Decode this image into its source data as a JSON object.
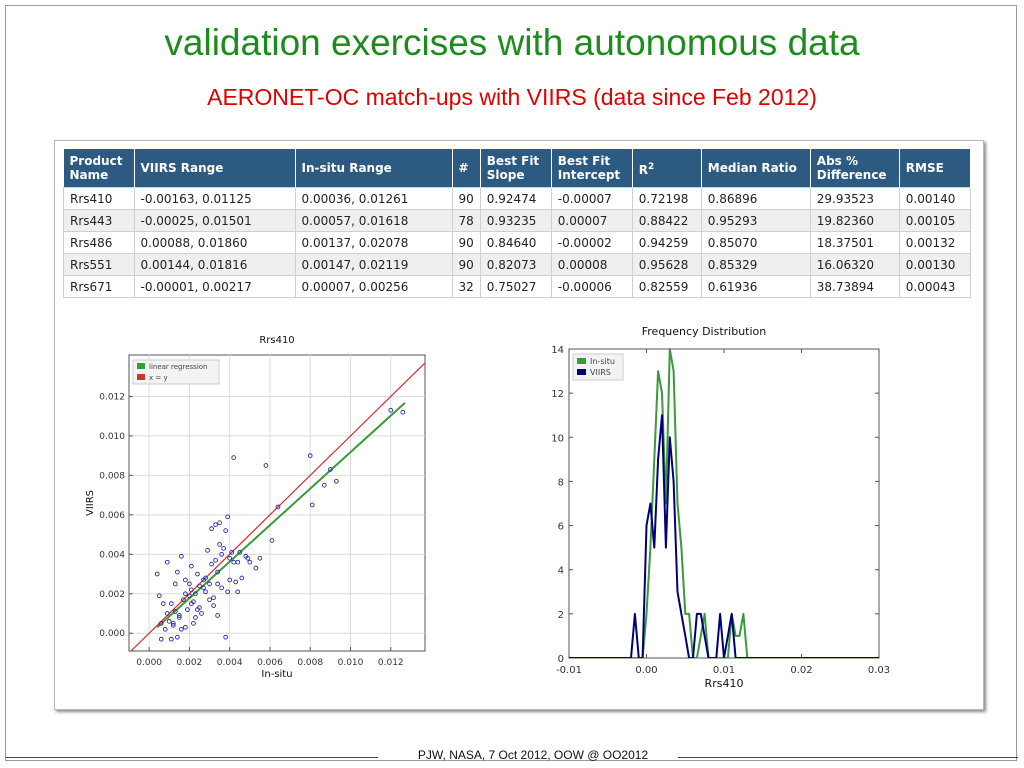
{
  "slide": {
    "title": "validation exercises with autonomous data",
    "subtitle": "AERONET-OC match-ups with VIIRS (data since Feb 2012)",
    "footer": "PJW, NASA, 7 Oct 2012, OOW @ OO2012"
  },
  "table": {
    "headers": [
      "Product Name",
      "VIIRS Range",
      "In-situ Range",
      "#",
      "Best Fit Slope",
      "Best Fit Intercept",
      "R",
      "Median Ratio",
      "Abs % Difference",
      "RMSE"
    ],
    "r_superscript": "2",
    "rows": [
      [
        "Rrs410",
        "-0.00163, 0.01125",
        "0.00036, 0.01261",
        "90",
        "0.92474",
        "-0.00007",
        "0.72198",
        "0.86896",
        "29.93523",
        "0.00140"
      ],
      [
        "Rrs443",
        "-0.00025, 0.01501",
        "0.00057, 0.01618",
        "78",
        "0.93235",
        "0.00007",
        "0.88422",
        "0.95293",
        "19.82360",
        "0.00105"
      ],
      [
        "Rrs486",
        "0.00088, 0.01860",
        "0.00137, 0.02078",
        "90",
        "0.84640",
        "-0.00002",
        "0.94259",
        "0.85070",
        "18.37501",
        "0.00132"
      ],
      [
        "Rrs551",
        "0.00144, 0.01816",
        "0.00147, 0.02119",
        "90",
        "0.82073",
        "0.00008",
        "0.95628",
        "0.85329",
        "16.06320",
        "0.00130"
      ],
      [
        "Rrs671",
        "-0.00001, 0.00217",
        "0.00007, 0.00256",
        "32",
        "0.75027",
        "-0.00006",
        "0.82559",
        "0.61936",
        "38.73894",
        "0.00043"
      ]
    ]
  },
  "colors": {
    "title": "#1e8b1e",
    "subtitle": "#e00000",
    "header": "#2d5a80",
    "regression": "#3a9a3a",
    "one_to_one": "#d03030",
    "points": "#2b2b9a",
    "insitu": "#3a9a3a",
    "viirs": "#00007a"
  },
  "chart_data": [
    {
      "type": "scatter",
      "title": "Rrs410",
      "xlabel": "In-situ",
      "ylabel": "VIIRS",
      "xlim": [
        -0.001,
        0.0137
      ],
      "ylim": [
        -0.0009,
        0.0141
      ],
      "xticks": [
        "0.000",
        "0.002",
        "0.004",
        "0.006",
        "0.008",
        "0.010",
        "0.012"
      ],
      "yticks": [
        "0.000",
        "0.002",
        "0.004",
        "0.006",
        "0.008",
        "0.010",
        "0.012"
      ],
      "grid": true,
      "legend_position": "top-left",
      "legend": [
        "linear regression",
        "x = y"
      ],
      "regression": {
        "slope": 0.92474,
        "intercept": -7e-05
      },
      "points": [
        [
          0.012,
          0.0113
        ],
        [
          0.0126,
          0.0112
        ],
        [
          0.0093,
          0.0077
        ],
        [
          0.0087,
          0.0075
        ],
        [
          0.009,
          0.0083
        ],
        [
          0.0081,
          0.0065
        ],
        [
          0.008,
          0.009
        ],
        [
          0.0064,
          0.0064
        ],
        [
          0.0058,
          0.0085
        ],
        [
          0.0042,
          0.0089
        ],
        [
          0.0061,
          0.0047
        ],
        [
          0.0055,
          0.0038
        ],
        [
          0.0053,
          0.0033
        ],
        [
          0.005,
          0.0036
        ],
        [
          0.0048,
          0.0039
        ],
        [
          0.0045,
          0.0041
        ],
        [
          0.0044,
          0.0036
        ],
        [
          0.0042,
          0.0036
        ],
        [
          0.0041,
          0.0041
        ],
        [
          0.004,
          0.0038
        ],
        [
          0.004,
          0.0027
        ],
        [
          0.0039,
          0.0021
        ],
        [
          0.0039,
          0.0059
        ],
        [
          0.0038,
          0.0052
        ],
        [
          0.0037,
          0.0043
        ],
        [
          0.0036,
          0.004
        ],
        [
          0.0036,
          0.0023
        ],
        [
          0.0035,
          0.0056
        ],
        [
          0.0035,
          0.0045
        ],
        [
          0.0034,
          0.0031
        ],
        [
          0.0034,
          0.0025
        ],
        [
          0.0033,
          0.0055
        ],
        [
          0.0033,
          0.0037
        ],
        [
          0.0032,
          0.0014
        ],
        [
          0.0031,
          0.0053
        ],
        [
          0.0031,
          0.0035
        ],
        [
          0.003,
          0.0025
        ],
        [
          0.003,
          0.0017
        ],
        [
          0.0029,
          0.0042
        ],
        [
          0.0028,
          0.0028
        ],
        [
          0.0027,
          0.0027
        ],
        [
          0.0026,
          0.001
        ],
        [
          0.0025,
          0.0024
        ],
        [
          0.0024,
          0.003
        ],
        [
          0.0023,
          0.002
        ],
        [
          0.0023,
          0.0008
        ],
        [
          0.0022,
          0.0016
        ],
        [
          0.0021,
          0.0034
        ],
        [
          0.0021,
          0.0022
        ],
        [
          0.002,
          0.0019
        ],
        [
          0.0019,
          0.0012
        ],
        [
          0.0018,
          0.0027
        ],
        [
          0.0018,
          0.0003
        ],
        [
          0.0017,
          0.0017
        ],
        [
          0.0016,
          0.0002
        ],
        [
          0.0016,
          0.0039
        ],
        [
          0.0015,
          0.0008
        ],
        [
          0.0014,
          0.0031
        ],
        [
          0.0014,
          -0.0002
        ],
        [
          0.0013,
          0.0011
        ],
        [
          0.0013,
          0.0025
        ],
        [
          0.0012,
          0.0004
        ],
        [
          0.0011,
          0.0015
        ],
        [
          0.0011,
          -0.0003
        ],
        [
          0.001,
          0.0006
        ],
        [
          0.0009,
          0.0036
        ],
        [
          0.0009,
          0.001
        ],
        [
          0.0008,
          0.0002
        ],
        [
          0.0007,
          0.0015
        ],
        [
          0.0006,
          -0.0003
        ],
        [
          0.0006,
          0.0005
        ],
        [
          0.0005,
          0.0019
        ],
        [
          0.0004,
          0.003
        ],
        [
          0.0027,
          0.0023
        ],
        [
          0.0025,
          0.0013
        ],
        [
          0.0022,
          0.0005
        ],
        [
          0.0034,
          0.0009
        ],
        [
          0.0044,
          0.0021
        ],
        [
          0.0038,
          -0.0002
        ],
        [
          0.0049,
          0.0038
        ],
        [
          0.0046,
          0.0028
        ],
        [
          0.0043,
          0.0026
        ],
        [
          0.0018,
          0.002
        ],
        [
          0.0012,
          0.0005
        ],
        [
          0.0015,
          0.0009
        ],
        [
          0.0021,
          0.0015
        ],
        [
          0.0028,
          0.0021
        ],
        [
          0.0032,
          0.0018
        ],
        [
          0.0024,
          0.0012
        ],
        [
          0.002,
          0.0025
        ]
      ]
    },
    {
      "type": "line",
      "title": "Frequency Distribution",
      "xlabel": "Rrs410",
      "ylabel": "",
      "xlim": [
        -0.01,
        0.03
      ],
      "ylim": [
        0,
        14
      ],
      "xticks": [
        "-0.01",
        "0.00",
        "0.01",
        "0.02",
        "0.03"
      ],
      "yticks": [
        "0",
        "2",
        "4",
        "6",
        "8",
        "10",
        "12",
        "14"
      ],
      "legend_position": "top-left",
      "x": [
        -0.01,
        -0.002,
        -0.0015,
        -0.001,
        -0.0005,
        0.0,
        0.0005,
        0.001,
        0.0015,
        0.002,
        0.0025,
        0.003,
        0.0035,
        0.004,
        0.0045,
        0.005,
        0.0055,
        0.006,
        0.0065,
        0.007,
        0.0075,
        0.008,
        0.0085,
        0.009,
        0.0095,
        0.01,
        0.0105,
        0.011,
        0.0115,
        0.012,
        0.0125,
        0.013,
        0.0135,
        0.03
      ],
      "series": [
        {
          "name": "In-situ",
          "values": [
            0,
            0,
            0,
            0,
            0,
            2,
            5,
            9,
            13,
            12,
            7,
            14,
            13,
            7,
            5,
            2,
            2,
            0,
            0,
            1,
            2,
            0,
            0,
            0,
            0,
            0,
            0,
            2,
            1,
            1,
            2,
            0,
            0,
            0
          ]
        },
        {
          "name": "VIIRS",
          "values": [
            0,
            0,
            2,
            0,
            0,
            6,
            7,
            5,
            9,
            11,
            5,
            10,
            8,
            3,
            2,
            1,
            0,
            0,
            2,
            2,
            1,
            0,
            0,
            0,
            2,
            0,
            1,
            2,
            0,
            0,
            0,
            0,
            0,
            0
          ]
        }
      ]
    }
  ]
}
